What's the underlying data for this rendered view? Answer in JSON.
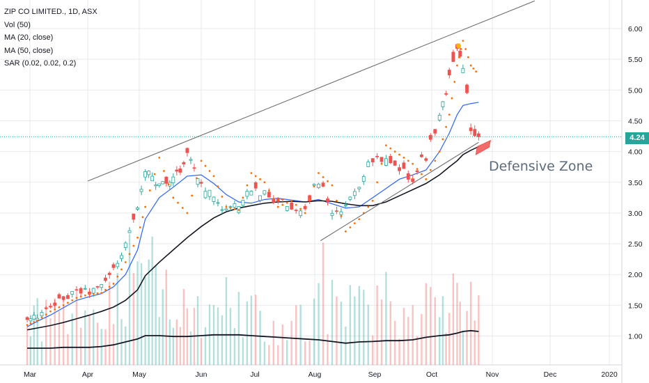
{
  "legend": {
    "symbol": "ZIP CO LIMITED., 1D, ASX",
    "vol": "Vol (50)",
    "ma20": "MA (20, close)",
    "ma50": "MA (50, close)",
    "sar": "SAR (0.02, 0.02, 0.2)"
  },
  "last_price_label": "4.24",
  "annotation": "Defensive Zone",
  "colors": {
    "up": "#26a69a",
    "down": "#ef5350",
    "ma20": "#2962ff",
    "ma50": "#131722",
    "sar": "#ff6d00",
    "trendline": "#6f6f6f",
    "grid": "#e8e9ed",
    "price_line": "#26a69a"
  },
  "chart_data": {
    "type": "candlestick",
    "y_axis": {
      "ticks": [
        1.0,
        1.5,
        2.0,
        2.5,
        3.0,
        3.5,
        4.0,
        4.5,
        5.0,
        5.5,
        6.0
      ],
      "range": [
        0.62,
        6.48
      ]
    },
    "x_axis": {
      "labels": [
        "Mar",
        "Apr",
        "May",
        "Jun",
        "Jul",
        "Aug",
        "Sep",
        "Oct",
        "Nov",
        "Dec",
        "2020"
      ]
    },
    "last_price": 4.24,
    "points": [
      {
        "m": "Feb",
        "d": 27,
        "c": 1.25
      },
      {
        "m": "Mar",
        "d": 5,
        "c": 1.32
      },
      {
        "m": "Mar",
        "d": 12,
        "c": 1.45
      },
      {
        "m": "Mar",
        "d": 19,
        "c": 1.62
      },
      {
        "m": "Mar",
        "d": 26,
        "c": 1.72
      },
      {
        "m": "Apr",
        "d": 2,
        "c": 1.72
      },
      {
        "m": "Apr",
        "d": 9,
        "c": 1.8
      },
      {
        "m": "Apr",
        "d": 16,
        "c": 2.08
      },
      {
        "m": "Apr",
        "d": 23,
        "c": 2.48
      },
      {
        "m": "Apr",
        "d": 30,
        "c": 3.15
      },
      {
        "m": "May",
        "d": 4,
        "c": 3.7
      },
      {
        "m": "May",
        "d": 11,
        "c": 3.4
      },
      {
        "m": "May",
        "d": 18,
        "c": 3.55
      },
      {
        "m": "May",
        "d": 25,
        "c": 3.95
      },
      {
        "m": "Jun",
        "d": 1,
        "c": 3.5
      },
      {
        "m": "Jun",
        "d": 8,
        "c": 3.25
      },
      {
        "m": "Jun",
        "d": 15,
        "c": 3.05
      },
      {
        "m": "Jun",
        "d": 22,
        "c": 3.12
      },
      {
        "m": "Jun",
        "d": 29,
        "c": 3.4
      },
      {
        "m": "Jul",
        "d": 6,
        "c": 3.3
      },
      {
        "m": "Jul",
        "d": 13,
        "c": 3.2
      },
      {
        "m": "Jul",
        "d": 20,
        "c": 3.1
      },
      {
        "m": "Jul",
        "d": 27,
        "c": 3.1
      },
      {
        "m": "Aug",
        "d": 3,
        "c": 3.55
      },
      {
        "m": "Aug",
        "d": 10,
        "c": 2.95
      },
      {
        "m": "Aug",
        "d": 17,
        "c": 3.05
      },
      {
        "m": "Aug",
        "d": 24,
        "c": 3.5
      },
      {
        "m": "Aug",
        "d": 31,
        "c": 3.9
      },
      {
        "m": "Sep",
        "d": 7,
        "c": 3.8
      },
      {
        "m": "Sep",
        "d": 14,
        "c": 3.65
      },
      {
        "m": "Sep",
        "d": 21,
        "c": 3.6
      },
      {
        "m": "Sep",
        "d": 28,
        "c": 3.95
      },
      {
        "m": "Oct",
        "d": 5,
        "c": 4.6
      },
      {
        "m": "Oct",
        "d": 10,
        "c": 5.2
      },
      {
        "m": "Oct",
        "d": 14,
        "c": 5.65
      },
      {
        "m": "Oct",
        "d": 17,
        "c": 5.35
      },
      {
        "m": "Oct",
        "d": 21,
        "c": 4.35
      },
      {
        "m": "Oct",
        "d": 25,
        "c": 4.24
      }
    ],
    "series": [
      {
        "name": "MA (20, close)",
        "values": [
          1.15,
          1.24,
          1.34,
          1.46,
          1.58,
          1.64,
          1.69,
          1.8,
          2.0,
          2.4,
          2.9,
          3.25,
          3.42,
          3.6,
          3.62,
          3.48,
          3.3,
          3.18,
          3.16,
          3.22,
          3.24,
          3.21,
          3.18,
          3.22,
          3.15,
          3.08,
          3.1,
          3.25,
          3.4,
          3.55,
          3.62,
          3.7,
          4.0,
          4.3,
          4.6,
          4.75,
          4.78,
          4.8
        ]
      },
      {
        "name": "MA (50, close)",
        "values": [
          1.1,
          1.13,
          1.17,
          1.22,
          1.28,
          1.34,
          1.4,
          1.47,
          1.58,
          1.75,
          1.98,
          2.2,
          2.4,
          2.6,
          2.78,
          2.92,
          3.02,
          3.08,
          3.12,
          3.16,
          3.18,
          3.19,
          3.18,
          3.2,
          3.19,
          3.15,
          3.12,
          3.12,
          3.18,
          3.28,
          3.38,
          3.48,
          3.62,
          3.75,
          3.85,
          3.95,
          4.02,
          4.08
        ]
      },
      {
        "name": "SAR (0.02, 0.02, 0.2)",
        "values": [
          1.18,
          1.25,
          1.4,
          1.5,
          1.62,
          1.68,
          1.7,
          1.85,
          2.2,
          2.6,
          3.1,
          3.9,
          3.25,
          3.0,
          3.85,
          3.6,
          3.1,
          3.05,
          3.65,
          3.5,
          3.1,
          3.2,
          3.0,
          3.65,
          3.45,
          2.7,
          2.9,
          3.2,
          4.1,
          3.95,
          3.8,
          3.55,
          4.0,
          4.6,
          5.4,
          5.8,
          5.4,
          5.25
        ]
      }
    ],
    "volume": [
      1.2,
      1.4,
      1.6,
      1.3,
      1.5,
      1.2,
      1.7,
      2.2,
      2.6,
      2.1,
      3.2,
      2.0,
      2.4,
      1.9,
      1.7,
      1.5,
      1.3,
      1.8,
      1.6,
      1.4,
      1.3,
      1.2,
      1.5,
      1.3,
      2.6,
      1.7,
      1.9,
      1.8,
      1.6,
      1.9,
      1.5,
      1.5,
      1.6,
      2.3,
      2.0,
      1.9,
      1.6,
      1.4
    ],
    "volume_ma": [
      0.4,
      0.4,
      0.4,
      0.42,
      0.42,
      0.42,
      0.44,
      0.48,
      0.55,
      0.62,
      0.7,
      0.7,
      0.68,
      0.68,
      0.7,
      0.72,
      0.72,
      0.72,
      0.7,
      0.68,
      0.66,
      0.64,
      0.62,
      0.6,
      0.56,
      0.52,
      0.55,
      0.56,
      0.58,
      0.58,
      0.6,
      0.66,
      0.7,
      0.72,
      0.76,
      0.8,
      0.82,
      0.8
    ],
    "trendlines": [
      {
        "name": "upper",
        "from": {
          "m": "Apr",
          "d": 1,
          "v": 3.52
        },
        "to": {
          "m": "Nov",
          "d": 23,
          "v": 6.45
        }
      },
      {
        "name": "lower",
        "from": {
          "m": "Aug",
          "d": 4,
          "v": 2.55
        },
        "to": {
          "m": "Oct",
          "d": 25,
          "v": 4.15
        }
      }
    ],
    "annotation": {
      "text": "Defensive Zone",
      "zone_low": 3.95,
      "zone_high": 4.08
    }
  }
}
